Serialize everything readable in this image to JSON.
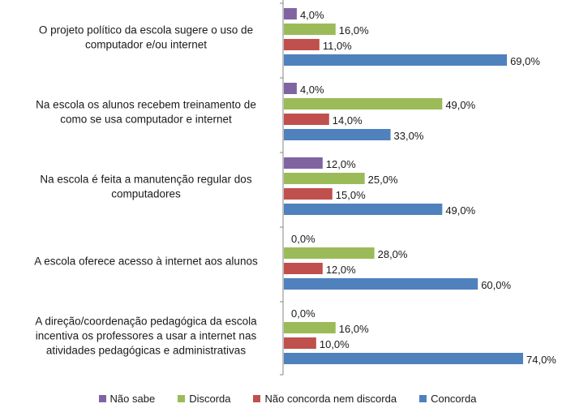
{
  "chart_data": {
    "type": "bar",
    "orientation": "horizontal",
    "categories": [
      [
        "O projeto político da escola sugere o uso de",
        "computador e/ou internet"
      ],
      [
        "Na escola os alunos recebem treinamento de",
        "como se usa computador e internet"
      ],
      [
        "Na escola é feita a manutenção regular dos",
        "computadores"
      ],
      [
        "A escola oferece acesso à internet aos alunos"
      ],
      [
        "A direção/coordenação pedagógica da escola",
        "incentiva os professores a usar a internet nas",
        "atividades pedagógicas e administrativas"
      ]
    ],
    "series": [
      {
        "name": "Não sabe",
        "color": "#8064a2",
        "values": [
          4.0,
          4.0,
          12.0,
          0.0,
          0.0
        ],
        "labels": [
          "4,0%",
          "4,0%",
          "12,0%",
          "0,0%",
          "0,0%"
        ]
      },
      {
        "name": "Discorda",
        "color": "#9bbb59",
        "values": [
          16.0,
          49.0,
          25.0,
          28.0,
          16.0
        ],
        "labels": [
          "16,0%",
          "49,0%",
          "25,0%",
          "28,0%",
          "16,0%"
        ]
      },
      {
        "name": "Não concorda nem discorda",
        "color": "#c0504d",
        "values": [
          11.0,
          14.0,
          15.0,
          12.0,
          10.0
        ],
        "labels": [
          "11,0%",
          "14,0%",
          "15,0%",
          "12,0%",
          "10,0%"
        ]
      },
      {
        "name": "Concorda",
        "color": "#4f81bd",
        "values": [
          69.0,
          33.0,
          49.0,
          60.0,
          74.0
        ],
        "labels": [
          "69,0%",
          "33,0%",
          "49,0%",
          "60,0%",
          "74,0%"
        ]
      }
    ],
    "xlim": [
      0,
      75
    ],
    "legend": "bottom",
    "grid": false
  }
}
